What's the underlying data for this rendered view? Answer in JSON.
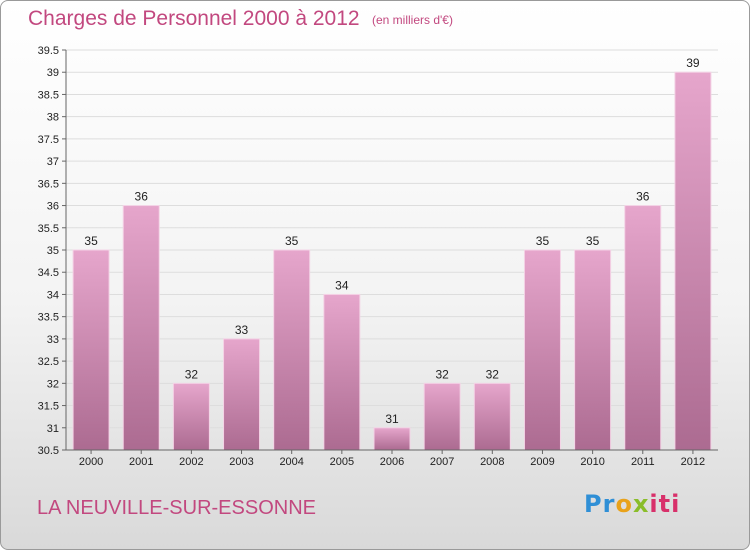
{
  "title": "Charges de Personnel 2000 à 2012",
  "subtitle": "(en milliers d'€)",
  "commune": "LA NEUVILLE-SUR-ESSONNE",
  "logo": {
    "text": "Proxiti",
    "colors": [
      "#2f8fd6",
      "#e9a21a",
      "#8abd2a",
      "#d8306a"
    ]
  },
  "colors": {
    "bar_top": "#e6a6cc",
    "bar_bottom": "#ac6b91",
    "bar_edge": "#f4d3e6",
    "title": "#c2487f",
    "grid": "#dddddd",
    "axis": "#666666",
    "text": "#222222"
  },
  "chart_data": {
    "type": "bar",
    "title": "Charges de Personnel 2000 à 2012",
    "subtitle": "(en milliers d'€)",
    "categories": [
      "2000",
      "2001",
      "2002",
      "2003",
      "2004",
      "2005",
      "2006",
      "2007",
      "2008",
      "2009",
      "2010",
      "2011",
      "2012"
    ],
    "values": [
      35,
      36,
      32,
      33,
      35,
      34,
      31,
      32,
      32,
      35,
      35,
      36,
      39
    ],
    "value_labels": [
      "35",
      "36",
      "32",
      "33",
      "35",
      "34",
      "31",
      "32",
      "32",
      "35",
      "35",
      "36",
      "39"
    ],
    "ylim": [
      30.5,
      39.5
    ],
    "yticks": [
      30.5,
      31,
      31.5,
      32,
      32.5,
      33,
      33.5,
      34,
      34.5,
      35,
      35.5,
      36,
      36.5,
      37,
      37.5,
      38,
      38.5,
      39,
      39.5
    ],
    "ytick_labels": [
      "30.5",
      "31",
      "31.5",
      "32",
      "32.5",
      "33",
      "33.5",
      "34",
      "34.5",
      "35",
      "35.5",
      "36",
      "36.5",
      "37",
      "37.5",
      "38",
      "38.5",
      "39",
      "39.5"
    ],
    "grid": true,
    "legend": false
  }
}
